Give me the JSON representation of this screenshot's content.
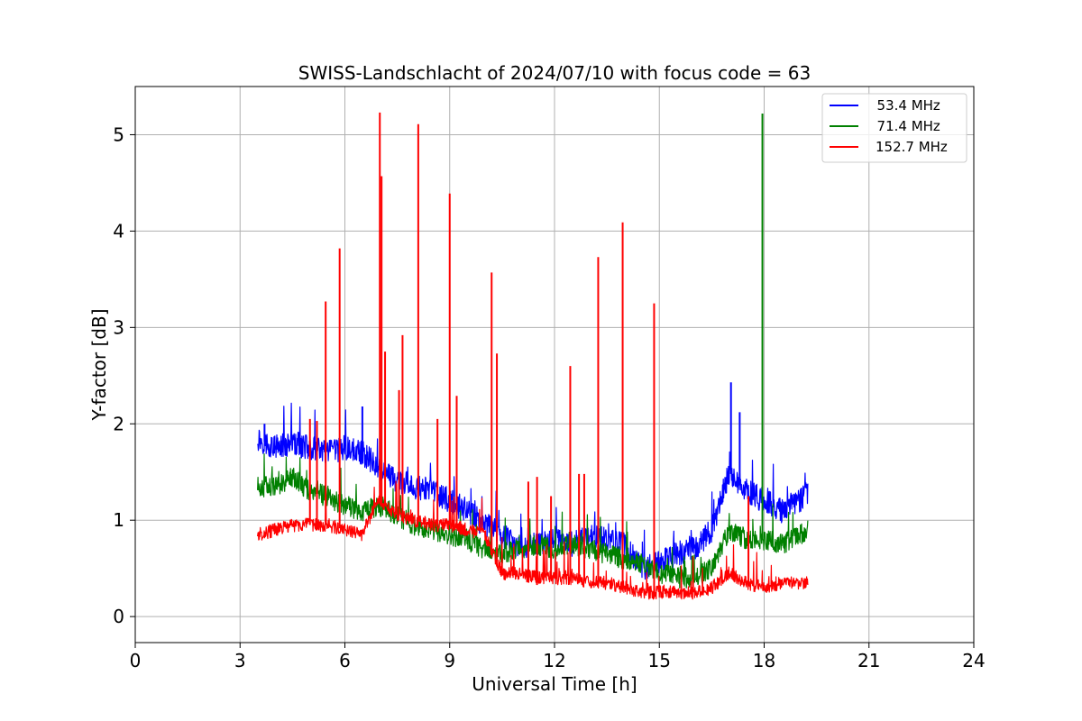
{
  "chart_data": {
    "type": "line",
    "title": "SWISS-Landschlacht of 2024/07/10 with focus code = 63",
    "xlabel": "Universal Time [h]",
    "ylabel": "Y-factor [dB]",
    "xlim": [
      0,
      24
    ],
    "ylim": [
      -0.27,
      5.5
    ],
    "xticks": [
      "0",
      "3",
      "6",
      "9",
      "12",
      "15",
      "18",
      "21",
      "24"
    ],
    "yticks": [
      "0",
      "1",
      "2",
      "3",
      "4",
      "5"
    ],
    "grid": true,
    "legend_position": "top-right",
    "series": [
      {
        "name": "  53.4 MHz",
        "color": "#0000ff",
        "x": [
          3.5,
          4,
          4.5,
          5,
          5.5,
          6,
          6.5,
          7,
          7.5,
          8,
          8.5,
          9,
          9.5,
          10,
          10.5,
          11,
          11.5,
          12,
          12.5,
          13,
          13.5,
          14,
          14.5,
          15,
          15.5,
          16,
          16.5,
          17,
          17.5,
          18,
          18.5,
          19,
          19.25
        ],
        "y": [
          1.85,
          1.75,
          1.8,
          1.75,
          1.7,
          1.75,
          1.7,
          1.55,
          1.4,
          1.35,
          1.3,
          1.2,
          1.1,
          0.95,
          0.85,
          0.7,
          0.75,
          0.8,
          0.75,
          0.85,
          0.8,
          0.75,
          0.5,
          0.55,
          0.65,
          0.7,
          0.9,
          1.5,
          1.3,
          1.2,
          1.1,
          1.2,
          1.3
        ],
        "spikes": [
          [
            3.7,
            2.0
          ],
          [
            6.5,
            2.18
          ],
          [
            17.05,
            2.43
          ],
          [
            17.3,
            2.12
          ]
        ]
      },
      {
        "name": "  71.4 MHz",
        "color": "#008000",
        "x": [
          3.5,
          4,
          4.5,
          5,
          5.5,
          6,
          6.5,
          7,
          7.5,
          8,
          8.5,
          9,
          9.5,
          10,
          10.5,
          11,
          11.5,
          12,
          12.5,
          13,
          13.5,
          14,
          14.5,
          15,
          15.5,
          16,
          16.5,
          17,
          17.5,
          18,
          18.5,
          19,
          19.25
        ],
        "y": [
          1.35,
          1.35,
          1.45,
          1.3,
          1.25,
          1.15,
          1.1,
          1.15,
          1.05,
          0.95,
          0.9,
          0.85,
          0.8,
          0.7,
          0.65,
          0.7,
          0.75,
          0.7,
          0.75,
          0.7,
          0.65,
          0.6,
          0.55,
          0.45,
          0.4,
          0.4,
          0.5,
          0.9,
          0.8,
          0.8,
          0.75,
          0.85,
          0.9
        ],
        "spikes": [
          [
            17.95,
            5.22
          ]
        ]
      },
      {
        "name": "152.7 MHz",
        "color": "#ff0000",
        "x": [
          3.5,
          4,
          4.5,
          5,
          5.5,
          6,
          6.5,
          6.8,
          7,
          7.5,
          8,
          8.5,
          9,
          9.5,
          10,
          10.5,
          11,
          11.5,
          12,
          12.5,
          13,
          13.5,
          14,
          14.5,
          15,
          15.5,
          16,
          16.5,
          17,
          17.5,
          18,
          18.5,
          19,
          19.25
        ],
        "y": [
          0.85,
          0.9,
          0.95,
          0.95,
          0.95,
          0.9,
          0.85,
          1.1,
          1.2,
          1.05,
          1.0,
          0.95,
          0.95,
          0.9,
          0.85,
          0.45,
          0.45,
          0.4,
          0.4,
          0.4,
          0.35,
          0.35,
          0.3,
          0.25,
          0.25,
          0.25,
          0.25,
          0.3,
          0.45,
          0.35,
          0.3,
          0.35,
          0.35,
          0.35
        ],
        "spikes": [
          [
            5.0,
            2.05
          ],
          [
            5.2,
            2.03
          ],
          [
            5.45,
            3.27
          ],
          [
            5.85,
            3.82
          ],
          [
            7.0,
            5.23
          ],
          [
            7.05,
            4.57
          ],
          [
            7.15,
            2.75
          ],
          [
            7.55,
            2.35
          ],
          [
            7.65,
            2.92
          ],
          [
            8.1,
            5.11
          ],
          [
            8.65,
            2.05
          ],
          [
            9.0,
            4.39
          ],
          [
            9.2,
            2.29
          ],
          [
            10.2,
            3.57
          ],
          [
            10.35,
            2.73
          ],
          [
            11.25,
            1.4
          ],
          [
            11.5,
            1.45
          ],
          [
            11.9,
            1.25
          ],
          [
            12.45,
            2.6
          ],
          [
            12.7,
            1.48
          ],
          [
            12.85,
            1.48
          ],
          [
            13.25,
            3.73
          ],
          [
            13.95,
            4.09
          ],
          [
            14.85,
            3.25
          ],
          [
            17.55,
            1.25
          ]
        ]
      }
    ]
  }
}
